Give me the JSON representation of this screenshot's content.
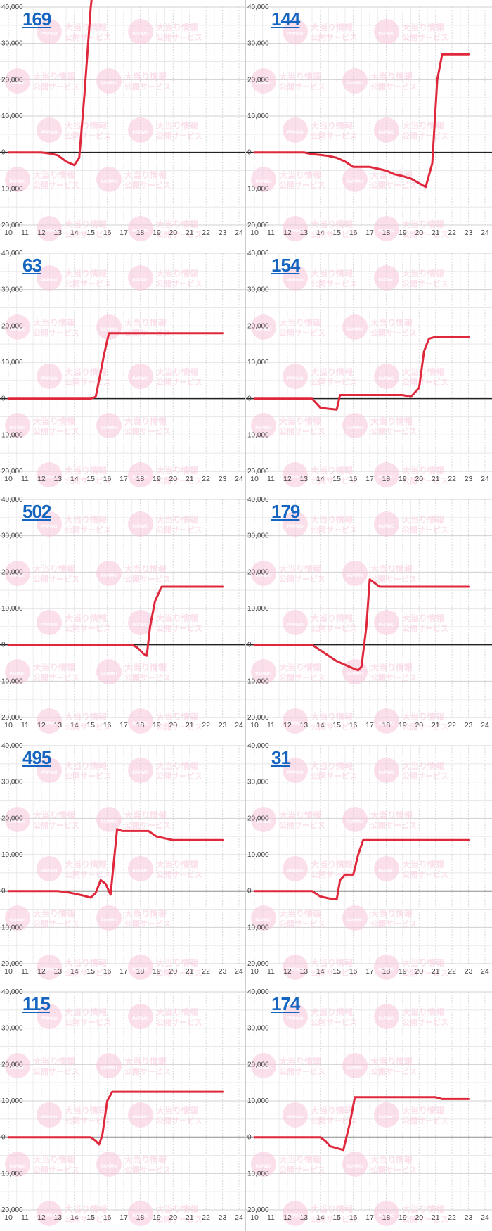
{
  "layout_grid": {
    "columns": 2,
    "rows": 5
  },
  "axis": {
    "y_ticks": [
      40000,
      30000,
      20000,
      10000,
      0,
      -10000,
      -20000
    ],
    "y_tick_labels": [
      "40,000",
      "30,000",
      "20,000",
      "10,000",
      "0",
      "10,000",
      "20,000"
    ],
    "x_ticks": [
      10,
      11,
      12,
      13,
      14,
      15,
      16,
      17,
      18,
      19,
      20,
      21,
      22,
      23,
      24
    ],
    "x_tick_labels": [
      "10",
      "11",
      "12",
      "13",
      "14",
      "15",
      "16",
      "17",
      "18",
      "19",
      "20",
      "21",
      "22",
      "23",
      "24"
    ]
  },
  "watermark": {
    "line1": "大当り情報",
    "line2": "公開サービス",
    "logo_text": "PAPIMO",
    "color": "#f8c8de"
  },
  "colors": {
    "series": "#e0283c",
    "zero_line": "#222222",
    "grid": "#e0e0e0",
    "label": "#1565c0"
  },
  "chart_data": [
    {
      "type": "line",
      "machine": "169",
      "x_range": [
        10,
        24
      ],
      "y_range": [
        -20000,
        40000
      ],
      "grid": true,
      "clipped_above": true,
      "points": [
        [
          10,
          0
        ],
        [
          12,
          0
        ],
        [
          12.5,
          -300
        ],
        [
          13,
          -800
        ],
        [
          13.5,
          -2500
        ],
        [
          14,
          -3500
        ],
        [
          14.3,
          -1500
        ],
        [
          14.6,
          15000
        ],
        [
          15,
          40000
        ],
        [
          15.05,
          42000
        ]
      ]
    },
    {
      "type": "line",
      "machine": "144",
      "x_range": [
        10,
        24
      ],
      "y_range": [
        -20000,
        40000
      ],
      "grid": true,
      "points": [
        [
          10,
          0
        ],
        [
          13,
          0
        ],
        [
          13.5,
          -500
        ],
        [
          14,
          -700
        ],
        [
          14.5,
          -1000
        ],
        [
          15,
          -1500
        ],
        [
          15.5,
          -2500
        ],
        [
          16,
          -4000
        ],
        [
          17,
          -4000
        ],
        [
          17.5,
          -4500
        ],
        [
          18,
          -5000
        ],
        [
          18.5,
          -6000
        ],
        [
          19,
          -6500
        ],
        [
          19.5,
          -7200
        ],
        [
          20,
          -8500
        ],
        [
          20.4,
          -9500
        ],
        [
          20.8,
          -3000
        ],
        [
          21.1,
          20000
        ],
        [
          21.4,
          27000
        ],
        [
          21.7,
          27000
        ],
        [
          23,
          27000
        ]
      ]
    },
    {
      "type": "line",
      "machine": "63",
      "x_range": [
        10,
        24
      ],
      "y_range": [
        -20000,
        40000
      ],
      "grid": true,
      "points": [
        [
          10,
          0
        ],
        [
          15,
          0
        ],
        [
          15.3,
          500
        ],
        [
          15.5,
          5000
        ],
        [
          15.8,
          12000
        ],
        [
          16.1,
          18000
        ],
        [
          16.4,
          18000
        ],
        [
          23,
          18000
        ]
      ]
    },
    {
      "type": "line",
      "machine": "154",
      "x_range": [
        10,
        24
      ],
      "y_range": [
        -20000,
        40000
      ],
      "grid": true,
      "points": [
        [
          10,
          0
        ],
        [
          13.5,
          0
        ],
        [
          14,
          -2500
        ],
        [
          14.5,
          -2800
        ],
        [
          15,
          -3000
        ],
        [
          15.2,
          1000
        ],
        [
          19,
          1000
        ],
        [
          19.5,
          500
        ],
        [
          20,
          3000
        ],
        [
          20.3,
          13000
        ],
        [
          20.6,
          16500
        ],
        [
          21,
          17000
        ],
        [
          23,
          17000
        ]
      ]
    },
    {
      "type": "line",
      "machine": "502",
      "x_range": [
        10,
        24
      ],
      "y_range": [
        -20000,
        40000
      ],
      "grid": true,
      "points": [
        [
          10,
          0
        ],
        [
          17.5,
          0
        ],
        [
          17.8,
          -700
        ],
        [
          18,
          -1500
        ],
        [
          18.2,
          -2500
        ],
        [
          18.4,
          -3000
        ],
        [
          18.6,
          5000
        ],
        [
          18.9,
          12000
        ],
        [
          19.3,
          16000
        ],
        [
          23,
          16000
        ]
      ]
    },
    {
      "type": "line",
      "machine": "179",
      "x_range": [
        10,
        24
      ],
      "y_range": [
        -20000,
        40000
      ],
      "grid": true,
      "points": [
        [
          10,
          0
        ],
        [
          13.5,
          0
        ],
        [
          14,
          -1500
        ],
        [
          14.5,
          -3000
        ],
        [
          15,
          -4500
        ],
        [
          15.5,
          -5500
        ],
        [
          16,
          -6500
        ],
        [
          16.3,
          -7000
        ],
        [
          16.5,
          -6000
        ],
        [
          16.8,
          5000
        ],
        [
          17,
          18000
        ],
        [
          17.3,
          17000
        ],
        [
          17.6,
          16000
        ],
        [
          23,
          16000
        ]
      ]
    },
    {
      "type": "line",
      "machine": "495",
      "x_range": [
        10,
        24
      ],
      "y_range": [
        -20000,
        40000
      ],
      "grid": true,
      "points": [
        [
          10,
          0
        ],
        [
          13,
          0
        ],
        [
          13.5,
          -300
        ],
        [
          14,
          -700
        ],
        [
          14.5,
          -1200
        ],
        [
          15,
          -1800
        ],
        [
          15.3,
          -500
        ],
        [
          15.6,
          3000
        ],
        [
          15.9,
          2000
        ],
        [
          16.2,
          -1000
        ],
        [
          16.6,
          17000
        ],
        [
          16.9,
          16500
        ],
        [
          18.5,
          16500
        ],
        [
          19,
          15000
        ],
        [
          19.5,
          14500
        ],
        [
          20,
          14000
        ],
        [
          23,
          14000
        ]
      ]
    },
    {
      "type": "line",
      "machine": "31",
      "x_range": [
        10,
        24
      ],
      "y_range": [
        -20000,
        40000
      ],
      "grid": true,
      "points": [
        [
          10,
          0
        ],
        [
          13.5,
          0
        ],
        [
          14,
          -1500
        ],
        [
          14.5,
          -2000
        ],
        [
          15,
          -2300
        ],
        [
          15.2,
          3000
        ],
        [
          15.5,
          4500
        ],
        [
          16,
          4500
        ],
        [
          16.3,
          10000
        ],
        [
          16.6,
          14000
        ],
        [
          17,
          14000
        ],
        [
          23,
          14000
        ]
      ]
    },
    {
      "type": "line",
      "machine": "115",
      "x_range": [
        10,
        24
      ],
      "y_range": [
        -20000,
        40000
      ],
      "grid": true,
      "points": [
        [
          10,
          0
        ],
        [
          15,
          0
        ],
        [
          15.3,
          -1000
        ],
        [
          15.5,
          -2000
        ],
        [
          15.7,
          500
        ],
        [
          16,
          10000
        ],
        [
          16.3,
          12500
        ],
        [
          23,
          12500
        ]
      ]
    },
    {
      "type": "line",
      "machine": "174",
      "x_range": [
        10,
        24
      ],
      "y_range": [
        -20000,
        40000
      ],
      "grid": true,
      "points": [
        [
          10,
          0
        ],
        [
          14,
          0
        ],
        [
          14.3,
          -1000
        ],
        [
          14.6,
          -2500
        ],
        [
          15,
          -3000
        ],
        [
          15.4,
          -3500
        ],
        [
          15.8,
          4000
        ],
        [
          16.1,
          11000
        ],
        [
          16.4,
          11000
        ],
        [
          21,
          11000
        ],
        [
          21.4,
          10500
        ],
        [
          23,
          10500
        ]
      ]
    }
  ]
}
